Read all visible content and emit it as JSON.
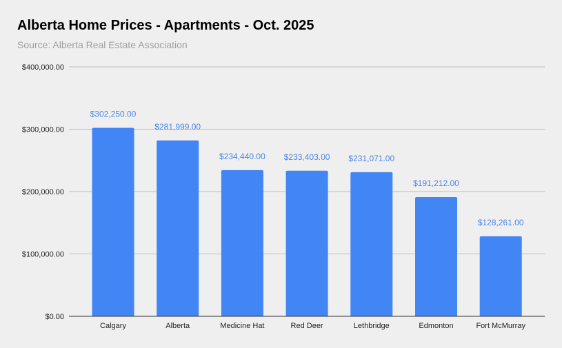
{
  "chart_data": {
    "type": "bar",
    "title": "Alberta Home Prices - Apartments - Oct. 2025",
    "subtitle": "Source: Alberta Real Estate Association",
    "categories": [
      "Calgary",
      "Alberta",
      "Medicine Hat",
      "Red Deer",
      "Lethbridge",
      "Edmonton",
      "Fort McMurray"
    ],
    "values": [
      302250,
      281999,
      234440,
      233403,
      231071,
      191212,
      128261
    ],
    "data_labels": [
      "$302,250.00",
      "$281,999.00",
      "$234,440.00",
      "$233,403.00",
      "$231,071.00",
      "$191,212.00",
      "$128,261.00"
    ],
    "yticks": [
      0,
      100000,
      200000,
      300000,
      400000
    ],
    "ytick_labels": [
      "$0.00",
      "$100,000.00",
      "$200,000.00",
      "$300,000.00",
      "$400,000.00"
    ],
    "ylim": [
      0,
      400000
    ],
    "xlabel": "",
    "ylabel": "",
    "grid": true,
    "bar_color": "#4285f4",
    "label_color": "#4a86e8"
  }
}
